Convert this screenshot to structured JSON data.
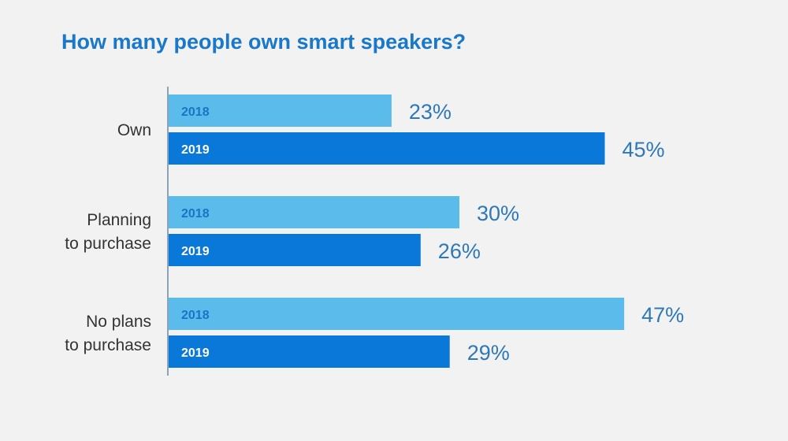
{
  "title": "How many people own smart speakers?",
  "colors": {
    "y2018": "#5bbcec",
    "y2019": "#0a78d8",
    "label2018": "#1a74c4",
    "label2019": "#ffffff",
    "axis": "#6a8aa8"
  },
  "chart_data": {
    "type": "bar",
    "orientation": "horizontal",
    "title": "How many people own smart speakers?",
    "xlabel": "",
    "ylabel": "",
    "xlim": [
      0,
      50
    ],
    "grid": false,
    "categories": [
      [
        "Own"
      ],
      [
        "Planning",
        "to purchase"
      ],
      [
        "No plans",
        "to purchase"
      ]
    ],
    "series": [
      {
        "name": "2018",
        "values": [
          23,
          30,
          47
        ]
      },
      {
        "name": "2019",
        "values": [
          45,
          26,
          29
        ]
      }
    ],
    "value_suffix": "%"
  }
}
